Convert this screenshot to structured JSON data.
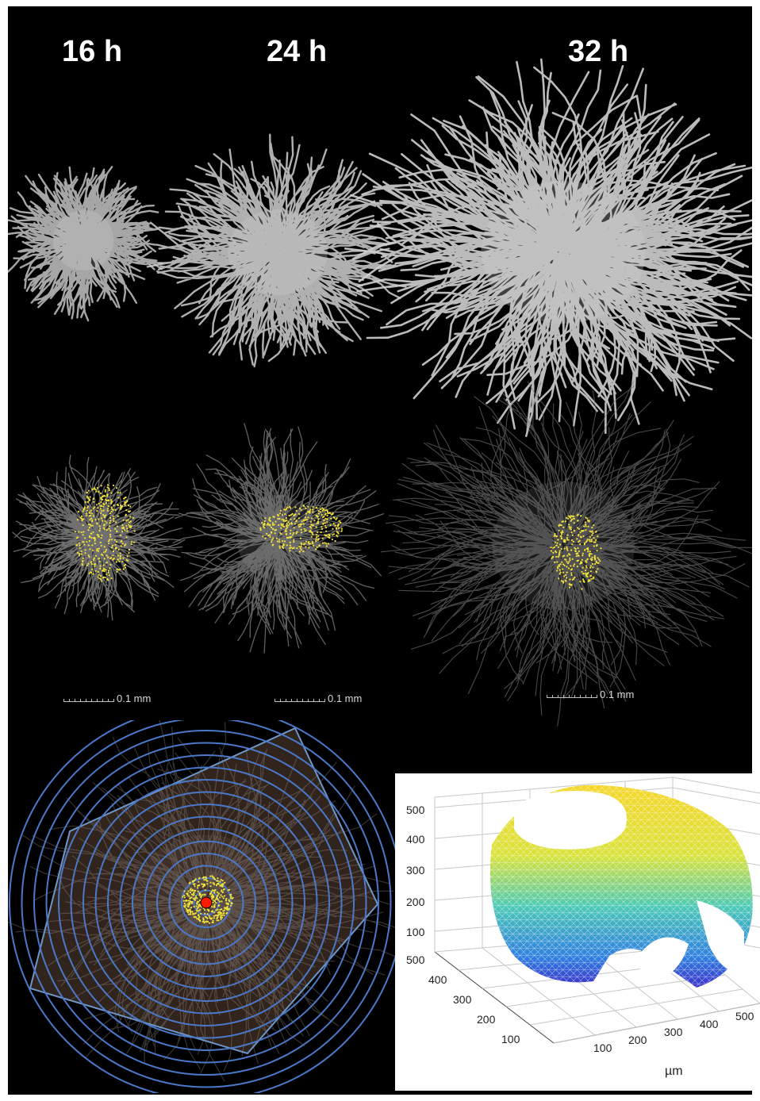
{
  "panels": {
    "time_labels": [
      "16 h",
      "24 h",
      "32 h"
    ],
    "scale_bars": [
      "0.1 mm",
      "0.1 mm",
      "0.1 mm"
    ]
  },
  "plot3d": {
    "z_ticks": [
      "500",
      "400",
      "300",
      "200",
      "100"
    ],
    "y_ticks": [
      "500",
      "400",
      "300",
      "200",
      "100"
    ],
    "x_ticks": [
      "100",
      "200",
      "300",
      "400",
      "500"
    ],
    "x_unit": "µm"
  },
  "colors": {
    "background": "#000000",
    "points": "#f2e23c",
    "center_point": "#ff1a00",
    "rings": "#4b78c8",
    "hull": "#6d97c9",
    "mycelium": "#cfcfcf"
  }
}
